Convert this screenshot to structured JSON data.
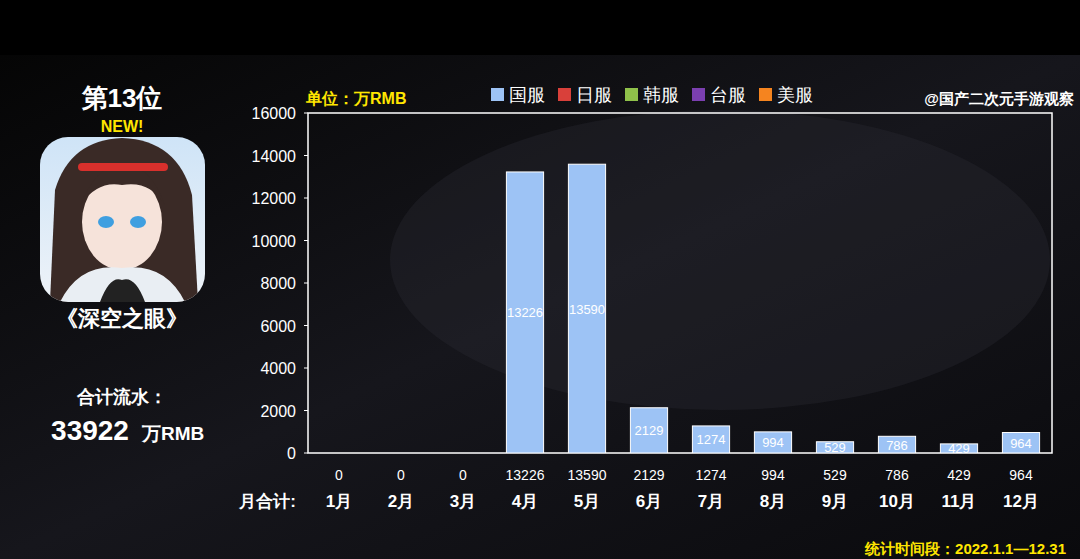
{
  "chart_data": {
    "type": "bar",
    "rank_label": "第13位",
    "badge": "NEW!",
    "title": "《深空之眼》",
    "total_label": "合计流水：",
    "total": 33922,
    "total_unit": "万RMB",
    "unit_label": "单位：万RMB",
    "source": "@国产二次元手游观察",
    "categories": [
      "1月",
      "2月",
      "3月",
      "4月",
      "5月",
      "6月",
      "7月",
      "8月",
      "9月",
      "10月",
      "11月",
      "12月"
    ],
    "series": [
      {
        "name": "国服",
        "color": "#9dc3f5",
        "values": [
          0,
          0,
          0,
          13226,
          13590,
          2129,
          1274,
          994,
          529,
          786,
          429,
          964
        ]
      },
      {
        "name": "日服",
        "color": "#d9403a",
        "values": [
          0,
          0,
          0,
          0,
          0,
          0,
          0,
          0,
          0,
          0,
          0,
          0
        ]
      },
      {
        "name": "韩服",
        "color": "#8fc14a",
        "values": [
          0,
          0,
          0,
          0,
          0,
          0,
          0,
          0,
          0,
          0,
          0,
          0
        ]
      },
      {
        "name": "台服",
        "color": "#7b3fb0",
        "values": [
          0,
          0,
          0,
          0,
          0,
          0,
          0,
          0,
          0,
          0,
          0,
          0
        ]
      },
      {
        "name": "美服",
        "color": "#f5841f",
        "values": [
          0,
          0,
          0,
          0,
          0,
          0,
          0,
          0,
          0,
          0,
          0,
          0
        ]
      }
    ],
    "stacked": true,
    "data_labels": true,
    "grid": false,
    "ylim": [
      0,
      16000
    ],
    "yticks": [
      0,
      2000,
      4000,
      6000,
      8000,
      10000,
      12000,
      14000,
      16000
    ],
    "totals_label": "月合计:",
    "month_totals": [
      0,
      0,
      0,
      13226,
      13590,
      2129,
      1274,
      994,
      529,
      786,
      429,
      964
    ],
    "period": "统计时间段：2022.1.1—12.31"
  }
}
